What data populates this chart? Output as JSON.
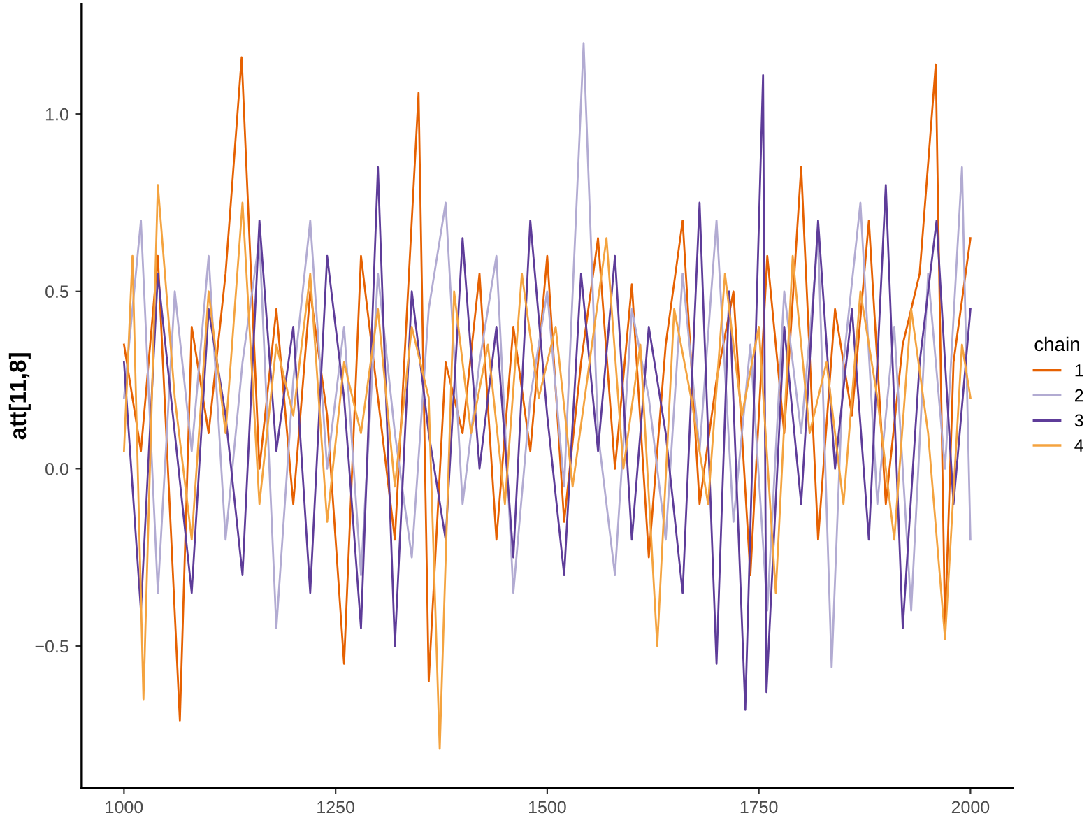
{
  "chart_data": {
    "type": "line",
    "ylabel": "att[11,8]",
    "legend_title": "chain",
    "legend": "right",
    "grid": false,
    "line_style": "solid",
    "marker": "none",
    "xlim": [
      950,
      2050
    ],
    "xticks": [
      1000,
      1250,
      1500,
      1750,
      2000
    ],
    "ylim": [
      -0.9,
      1.31
    ],
    "yticks": [
      {
        "value": -0.5,
        "label": "−0.5"
      },
      {
        "value": 0.0,
        "label": "0.0"
      },
      {
        "value": 0.5,
        "label": "0.5"
      },
      {
        "value": 1.0,
        "label": "1.0"
      }
    ],
    "series": [
      {
        "name": "1",
        "color": "#e66101",
        "x": [
          1000,
          1020,
          1040,
          1066,
          1080,
          1100,
          1120,
          1139,
          1160,
          1180,
          1200,
          1220,
          1240,
          1260,
          1280,
          1300,
          1320,
          1348,
          1360,
          1380,
          1400,
          1420,
          1440,
          1460,
          1480,
          1500,
          1520,
          1540,
          1560,
          1580,
          1600,
          1620,
          1640,
          1660,
          1680,
          1700,
          1720,
          1740,
          1760,
          1780,
          1800,
          1820,
          1840,
          1860,
          1880,
          1900,
          1920,
          1940,
          1959,
          1970,
          1980,
          2000
        ],
        "values": [
          0.35,
          0.05,
          0.6,
          -0.71,
          0.4,
          0.1,
          0.55,
          1.16,
          0.0,
          0.45,
          -0.1,
          0.5,
          0.15,
          -0.55,
          0.6,
          0.2,
          -0.2,
          1.06,
          -0.6,
          0.3,
          0.1,
          0.55,
          -0.2,
          0.4,
          0.05,
          0.6,
          -0.15,
          0.3,
          0.65,
          0.0,
          0.52,
          -0.25,
          0.35,
          0.7,
          -0.1,
          0.25,
          0.5,
          -0.3,
          0.6,
          0.1,
          0.85,
          -0.2,
          0.45,
          0.15,
          0.7,
          -0.1,
          0.35,
          0.55,
          1.14,
          -0.45,
          0.3,
          0.65
        ]
      },
      {
        "name": "2",
        "color": "#b2abd2",
        "x": [
          1000,
          1020,
          1040,
          1060,
          1080,
          1100,
          1120,
          1140,
          1160,
          1180,
          1200,
          1220,
          1240,
          1260,
          1280,
          1300,
          1320,
          1340,
          1360,
          1380,
          1400,
          1420,
          1440,
          1460,
          1480,
          1500,
          1520,
          1543,
          1560,
          1580,
          1600,
          1620,
          1640,
          1660,
          1680,
          1700,
          1720,
          1740,
          1760,
          1780,
          1800,
          1820,
          1836,
          1850,
          1870,
          1890,
          1910,
          1930,
          1950,
          1970,
          1990,
          2000
        ],
        "values": [
          0.2,
          0.7,
          -0.35,
          0.5,
          0.05,
          0.6,
          -0.2,
          0.3,
          0.65,
          -0.45,
          0.25,
          0.7,
          0.0,
          0.4,
          -0.3,
          0.55,
          0.1,
          -0.25,
          0.45,
          0.75,
          -0.1,
          0.3,
          0.6,
          -0.35,
          0.2,
          0.5,
          -0.05,
          1.2,
          0.1,
          -0.3,
          0.45,
          0.2,
          -0.2,
          0.55,
          0.05,
          0.7,
          -0.15,
          0.35,
          -0.4,
          0.5,
          0.1,
          0.65,
          -0.56,
          0.3,
          0.75,
          -0.1,
          0.4,
          -0.4,
          0.55,
          0.0,
          0.85,
          -0.2
        ]
      },
      {
        "name": "3",
        "color": "#5e3c99",
        "x": [
          1000,
          1020,
          1040,
          1060,
          1080,
          1100,
          1120,
          1140,
          1160,
          1180,
          1200,
          1220,
          1240,
          1260,
          1280,
          1300,
          1320,
          1340,
          1360,
          1380,
          1400,
          1420,
          1440,
          1460,
          1480,
          1500,
          1520,
          1540,
          1560,
          1580,
          1600,
          1620,
          1640,
          1660,
          1680,
          1700,
          1715,
          1734,
          1755,
          1759,
          1780,
          1800,
          1820,
          1840,
          1860,
          1880,
          1900,
          1920,
          1940,
          1960,
          1980,
          2000
        ],
        "values": [
          0.3,
          -0.4,
          0.55,
          0.1,
          -0.35,
          0.45,
          0.15,
          -0.3,
          0.7,
          0.05,
          0.4,
          -0.35,
          0.6,
          0.2,
          -0.45,
          0.85,
          -0.5,
          0.5,
          0.1,
          -0.2,
          0.65,
          0.0,
          0.4,
          -0.25,
          0.7,
          0.15,
          -0.3,
          0.55,
          0.05,
          0.6,
          -0.2,
          0.4,
          0.1,
          -0.35,
          0.75,
          -0.55,
          0.5,
          -0.68,
          1.11,
          -0.63,
          0.4,
          -0.1,
          0.7,
          0.0,
          0.45,
          -0.2,
          0.8,
          -0.45,
          0.3,
          0.7,
          -0.1,
          0.45
        ]
      },
      {
        "name": "4",
        "color": "#f4a33f",
        "x": [
          1000,
          1010,
          1023,
          1040,
          1060,
          1080,
          1100,
          1120,
          1140,
          1160,
          1180,
          1200,
          1220,
          1240,
          1260,
          1280,
          1300,
          1320,
          1340,
          1360,
          1373,
          1390,
          1410,
          1430,
          1450,
          1470,
          1490,
          1510,
          1530,
          1550,
          1570,
          1590,
          1610,
          1630,
          1650,
          1670,
          1690,
          1710,
          1730,
          1750,
          1770,
          1790,
          1810,
          1830,
          1850,
          1870,
          1890,
          1910,
          1930,
          1950,
          1970,
          1990,
          2000
        ],
        "values": [
          0.05,
          0.6,
          -0.65,
          0.8,
          0.2,
          -0.2,
          0.5,
          0.1,
          0.75,
          -0.1,
          0.35,
          0.15,
          0.55,
          -0.15,
          0.3,
          0.1,
          0.45,
          -0.05,
          0.4,
          0.2,
          -0.79,
          0.5,
          0.1,
          0.35,
          -0.1,
          0.55,
          0.2,
          0.4,
          -0.05,
          0.3,
          0.65,
          0.0,
          0.35,
          -0.5,
          0.45,
          0.2,
          -0.1,
          0.55,
          0.15,
          0.4,
          -0.35,
          0.6,
          0.1,
          0.3,
          -0.1,
          0.5,
          0.2,
          -0.2,
          0.45,
          0.1,
          -0.48,
          0.35,
          0.2
        ]
      }
    ]
  }
}
